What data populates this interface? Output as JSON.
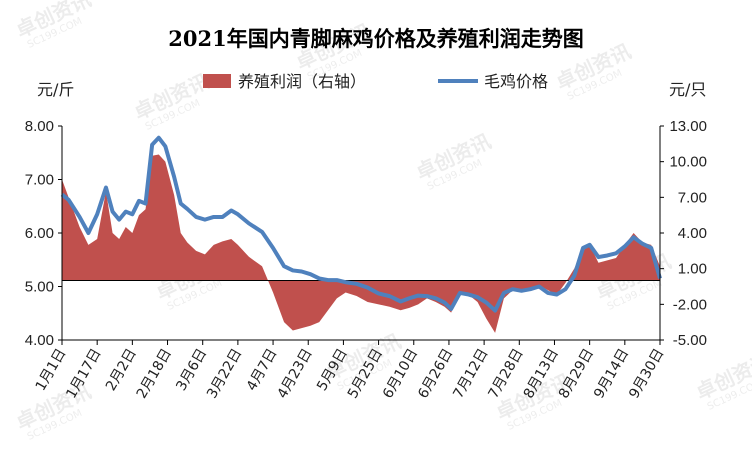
{
  "chart_data": {
    "type": "combo",
    "title": "2021年国内青脚麻鸡价格及养殖利润走势图",
    "left_unit": "元/斤",
    "right_unit": "元/只",
    "left_ylim": [
      4.0,
      8.0
    ],
    "left_ticks": [
      "4.00",
      "5.00",
      "6.00",
      "7.00",
      "8.00"
    ],
    "right_ylim": [
      -5,
      13
    ],
    "right_ticks": [
      "-5.00",
      "-2.00",
      "1.00",
      "4.00",
      "7.00",
      "10.00",
      "13.00"
    ],
    "legend_position": "top-center",
    "categories": [
      "1月1日",
      "1月17日",
      "2月2日",
      "2月18日",
      "3月6日",
      "3月22日",
      "4月7日",
      "4月23日",
      "5月9日",
      "5月25日",
      "6月10日",
      "6月26日",
      "7月12日",
      "7月28日",
      "8月13日",
      "8月29日",
      "9月14日",
      "9月30日"
    ],
    "series": [
      {
        "name": "养殖利润（右轴）",
        "axis": "right",
        "kind": "area",
        "color": "#c0504d",
        "x": [
          "1月1日",
          "1月4日",
          "1月9日",
          "1月13日",
          "1月17日",
          "1月21日",
          "1月24日",
          "1月27日",
          "1月30日",
          "2月2日",
          "2月5日",
          "2月8日",
          "2月11日",
          "2月14日",
          "2月17日",
          "2月21日",
          "2月24日",
          "2月27日",
          "3月3日",
          "3月7日",
          "3月11日",
          "3月15日",
          "3月19日",
          "3月22日",
          "3月27日",
          "4月2日",
          "4月7日",
          "4月12日",
          "4月16日",
          "4月20日",
          "4月24日",
          "4月28日",
          "5月2日",
          "5月6日",
          "5月10日",
          "5月15日",
          "5月20日",
          "5月25日",
          "5月30日",
          "6月4日",
          "6月8日",
          "6月12日",
          "6月16日",
          "6月20日",
          "6月24日",
          "6月27日",
          "7月1日",
          "7月5日",
          "7月9日",
          "7月13日",
          "7月17日",
          "7月21日",
          "7月25日",
          "7月29日",
          "8月2日",
          "8月6日",
          "8月10日",
          "8月14日",
          "8月18日",
          "8月22日",
          "8月26日",
          "8月29日",
          "9月2日",
          "9月6日",
          "9月10日",
          "9月14日",
          "9月18日",
          "9月22日",
          "9月26日",
          "9月30日"
        ],
        "values": [
          8.5,
          7.0,
          4.5,
          3.0,
          3.5,
          7.5,
          4.0,
          3.5,
          4.5,
          4.0,
          5.5,
          6.0,
          10.5,
          10.6,
          10.0,
          7.2,
          4.0,
          3.2,
          2.5,
          2.2,
          3.0,
          3.3,
          3.5,
          3.0,
          2.0,
          1.2,
          -1.0,
          -3.5,
          -4.2,
          -4.0,
          -3.8,
          -3.5,
          -2.5,
          -1.5,
          -1.0,
          -1.3,
          -1.8,
          -2.0,
          -2.2,
          -2.5,
          -2.3,
          -2.0,
          -1.5,
          -1.8,
          -2.2,
          -2.7,
          -1.0,
          -1.2,
          -1.8,
          -3.2,
          -4.4,
          -1.5,
          -0.8,
          -1.0,
          -0.7,
          -0.4,
          -0.8,
          -1.2,
          -0.2,
          1.0,
          2.5,
          3.0,
          1.5,
          1.7,
          1.9,
          3.0,
          4.0,
          3.2,
          3.0,
          1.2
        ]
      },
      {
        "name": "毛鸡价格",
        "axis": "left",
        "kind": "line",
        "color": "#4f81bd",
        "x": [
          "1月1日",
          "1月4日",
          "1月9日",
          "1月13日",
          "1月17日",
          "1月21日",
          "1月24日",
          "1月27日",
          "1月30日",
          "2月2日",
          "2月5日",
          "2月8日",
          "2月11日",
          "2月14日",
          "2月17日",
          "2月21日",
          "2月24日",
          "2月27日",
          "3月3日",
          "3月7日",
          "3月11日",
          "3月15日",
          "3月19日",
          "3月22日",
          "3月27日",
          "4月2日",
          "4月7日",
          "4月12日",
          "4月16日",
          "4月20日",
          "4月24日",
          "4月28日",
          "5月2日",
          "5月6日",
          "5月10日",
          "5月15日",
          "5月20日",
          "5月25日",
          "5月30日",
          "6月4日",
          "6月8日",
          "6月12日",
          "6月16日",
          "6月20日",
          "6月24日",
          "6月27日",
          "7月1日",
          "7月5日",
          "7月9日",
          "7月13日",
          "7月17日",
          "7月21日",
          "7月25日",
          "7月29日",
          "8月2日",
          "8月6日",
          "8月10日",
          "8月14日",
          "8月18日",
          "8月22日",
          "8月26日",
          "8月29日",
          "9月2日",
          "9月6日",
          "9月10日",
          "9月14日",
          "9月18日",
          "9月22日",
          "9月26日",
          "9月30日"
        ],
        "values": [
          6.72,
          6.62,
          6.3,
          6.0,
          6.35,
          6.85,
          6.4,
          6.25,
          6.4,
          6.35,
          6.6,
          6.55,
          7.65,
          7.78,
          7.62,
          7.05,
          6.55,
          6.45,
          6.3,
          6.25,
          6.3,
          6.3,
          6.42,
          6.35,
          6.18,
          6.02,
          5.72,
          5.38,
          5.3,
          5.28,
          5.23,
          5.15,
          5.12,
          5.12,
          5.08,
          5.05,
          4.98,
          4.87,
          4.82,
          4.72,
          4.78,
          4.83,
          4.82,
          4.78,
          4.7,
          4.58,
          4.88,
          4.85,
          4.8,
          4.7,
          4.55,
          4.88,
          4.95,
          4.92,
          4.95,
          5.0,
          4.88,
          4.85,
          4.95,
          5.2,
          5.72,
          5.78,
          5.55,
          5.58,
          5.62,
          5.75,
          5.92,
          5.8,
          5.72,
          5.15
        ]
      }
    ]
  },
  "watermark": {
    "text": "卓创资讯",
    "sub": "SC199.COM"
  }
}
